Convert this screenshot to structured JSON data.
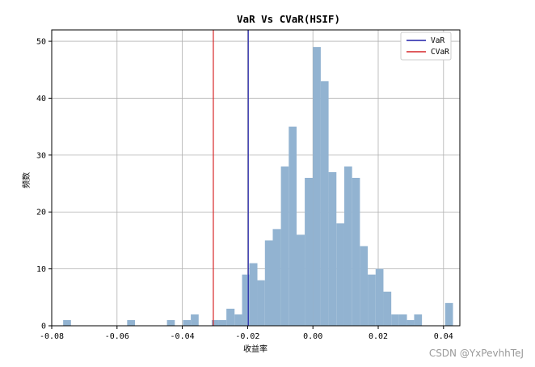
{
  "chart_data": {
    "type": "histogram",
    "title": "VaR Vs CVaR(HSIF)",
    "xlabel": "收益率",
    "ylabel": "频数",
    "xlim": [
      -0.08,
      0.045
    ],
    "ylim": [
      0,
      52
    ],
    "xticks": [
      -0.08,
      -0.06,
      -0.04,
      -0.02,
      0.0,
      0.02,
      0.04
    ],
    "xtick_labels": [
      "-0.08",
      "-0.06",
      "-0.04",
      "-0.02",
      "0.00",
      "0.02",
      "0.04"
    ],
    "yticks": [
      0,
      10,
      20,
      30,
      40,
      50
    ],
    "ytick_labels": [
      "0",
      "10",
      "20",
      "30",
      "40",
      "50"
    ],
    "grid": true,
    "legend_position": "top-right",
    "bar_color": "#92b3d1",
    "bins": [
      {
        "x0": -0.0765,
        "x1": -0.0741,
        "count": 1
      },
      {
        "x0": -0.0569,
        "x1": -0.0545,
        "count": 1
      },
      {
        "x0": -0.0447,
        "x1": -0.0423,
        "count": 1
      },
      {
        "x0": -0.0398,
        "x1": -0.0374,
        "count": 1
      },
      {
        "x0": -0.0374,
        "x1": -0.035,
        "count": 2
      },
      {
        "x0": -0.031,
        "x1": -0.029,
        "count": 1
      },
      {
        "x0": -0.029,
        "x1": -0.0265,
        "count": 1
      },
      {
        "x0": -0.0265,
        "x1": -0.024,
        "count": 3
      },
      {
        "x0": -0.024,
        "x1": -0.0217,
        "count": 2
      },
      {
        "x0": -0.0217,
        "x1": -0.0195,
        "count": 9
      },
      {
        "x0": -0.0195,
        "x1": -0.017,
        "count": 11
      },
      {
        "x0": -0.017,
        "x1": -0.0147,
        "count": 8
      },
      {
        "x0": -0.0147,
        "x1": -0.0123,
        "count": 15
      },
      {
        "x0": -0.0123,
        "x1": -0.0098,
        "count": 17
      },
      {
        "x0": -0.0098,
        "x1": -0.0074,
        "count": 28
      },
      {
        "x0": -0.0074,
        "x1": -0.005,
        "count": 35
      },
      {
        "x0": -0.005,
        "x1": -0.0025,
        "count": 16
      },
      {
        "x0": -0.0025,
        "x1": 0.0,
        "count": 26
      },
      {
        "x0": 0.0,
        "x1": 0.0024,
        "count": 49
      },
      {
        "x0": 0.0024,
        "x1": 0.0048,
        "count": 43
      },
      {
        "x0": 0.0048,
        "x1": 0.0072,
        "count": 27
      },
      {
        "x0": 0.0072,
        "x1": 0.0096,
        "count": 18
      },
      {
        "x0": 0.0096,
        "x1": 0.012,
        "count": 28
      },
      {
        "x0": 0.012,
        "x1": 0.0144,
        "count": 26
      },
      {
        "x0": 0.0144,
        "x1": 0.0168,
        "count": 14
      },
      {
        "x0": 0.0168,
        "x1": 0.0192,
        "count": 9
      },
      {
        "x0": 0.0192,
        "x1": 0.0216,
        "count": 10
      },
      {
        "x0": 0.0216,
        "x1": 0.024,
        "count": 6
      },
      {
        "x0": 0.024,
        "x1": 0.0264,
        "count": 2
      },
      {
        "x0": 0.0264,
        "x1": 0.0288,
        "count": 2
      },
      {
        "x0": 0.0288,
        "x1": 0.031,
        "count": 1
      },
      {
        "x0": 0.031,
        "x1": 0.0334,
        "count": 2
      },
      {
        "x0": 0.0405,
        "x1": 0.0429,
        "count": 4
      }
    ],
    "vlines": [
      {
        "name": "VaR",
        "x": -0.0198,
        "color": "#1f1fa8"
      },
      {
        "name": "CVaR",
        "x": -0.0305,
        "color": "#d62728"
      }
    ]
  },
  "watermark": "CSDN @YxPevhhTeJ"
}
